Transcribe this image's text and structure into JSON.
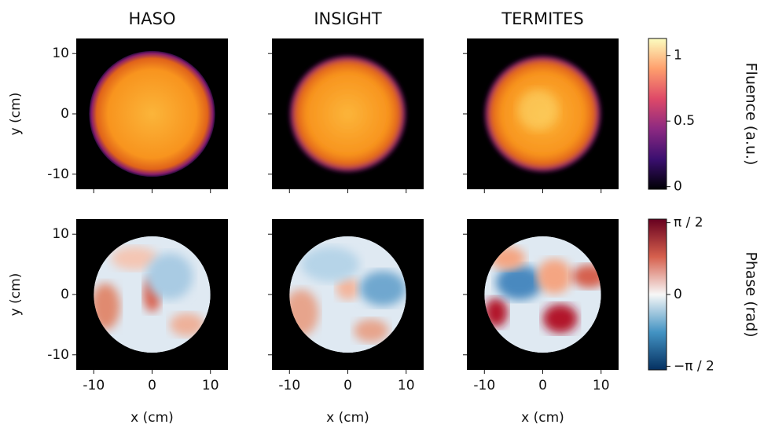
{
  "figure": {
    "columns": [
      "HASO",
      "INSIGHT",
      "TERMITES"
    ],
    "xlabel": "x (cm)",
    "ylabel": "y (cm)",
    "xlim": [
      -13,
      13
    ],
    "ylim": [
      -12.5,
      12.5
    ],
    "xticks": [
      -10,
      0,
      10
    ],
    "yticks": [
      -10,
      0,
      10
    ],
    "colorbars": [
      {
        "label": "Fluence (a.u.)",
        "lim": [
          -0.02,
          1.13
        ],
        "ticks": [
          0,
          0.5,
          1
        ]
      },
      {
        "label": "Phase (rad)",
        "lim": [
          -1.65,
          1.65
        ],
        "ticks": [
          {
            "value": -1.5708,
            "label": "−π / 2"
          },
          0,
          {
            "value": 1.5708,
            "label": "π / 2"
          }
        ]
      }
    ]
  }
}
